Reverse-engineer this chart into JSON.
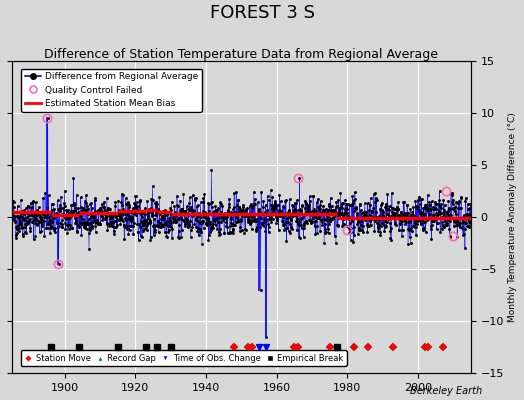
{
  "title": "FOREST 3 S",
  "subtitle": "Difference of Station Temperature Data from Regional Average",
  "ylabel_right": "Monthly Temperature Anomaly Difference (°C)",
  "ylim": [
    -15,
    15
  ],
  "xlim": [
    1885,
    2015
  ],
  "yticks": [
    -15,
    -10,
    -5,
    0,
    5,
    10,
    15
  ],
  "xticks": [
    1900,
    1920,
    1940,
    1960,
    1980,
    2000
  ],
  "bg_color": "#d8d8d8",
  "plot_bg_color": "#d8d8d8",
  "grid_color": "#ffffff",
  "title_fontsize": 13,
  "subtitle_fontsize": 9,
  "watermark": "Berkeley Earth",
  "station_moves": [
    1948,
    1952,
    1953,
    1965,
    1966,
    1975,
    1982,
    1986,
    1993,
    2002,
    2003,
    2007
  ],
  "empirical_breaks": [
    1896,
    1904,
    1915,
    1923,
    1926,
    1930,
    1977
  ],
  "time_of_obs_changes": [
    1955,
    1957
  ],
  "record_gaps": [],
  "qc_failed_x": [
    1895,
    1898,
    1966,
    1980,
    2008,
    2010
  ],
  "qc_failed_y": [
    9.5,
    -4.5,
    3.8,
    -1.2,
    2.5,
    -1.8
  ],
  "spike_blue_lines": [
    {
      "x": 1895,
      "y1": 0.3,
      "y2": 9.5
    },
    {
      "x": 1898,
      "y1": -0.3,
      "y2": -4.5
    },
    {
      "x": 1957,
      "y1": 0.0,
      "y2": -11.5
    },
    {
      "x": 1955,
      "y1": 0.0,
      "y2": -7.0
    }
  ],
  "mean_bias_segments": [
    {
      "x": [
        1885,
        1896
      ],
      "y": [
        0.5,
        0.5
      ]
    },
    {
      "x": [
        1896,
        1904
      ],
      "y": [
        0.2,
        0.2
      ]
    },
    {
      "x": [
        1904,
        1915
      ],
      "y": [
        0.4,
        0.4
      ]
    },
    {
      "x": [
        1915,
        1923
      ],
      "y": [
        0.6,
        0.6
      ]
    },
    {
      "x": [
        1923,
        1926
      ],
      "y": [
        0.7,
        0.7
      ]
    },
    {
      "x": [
        1926,
        1930
      ],
      "y": [
        0.5,
        0.5
      ]
    },
    {
      "x": [
        1930,
        1977
      ],
      "y": [
        0.3,
        0.3
      ]
    },
    {
      "x": [
        1977,
        2015
      ],
      "y": [
        -0.1,
        -0.1
      ]
    }
  ],
  "seed": 42,
  "n_points": 1560,
  "data_start": 1885.0,
  "data_end": 2015.0
}
